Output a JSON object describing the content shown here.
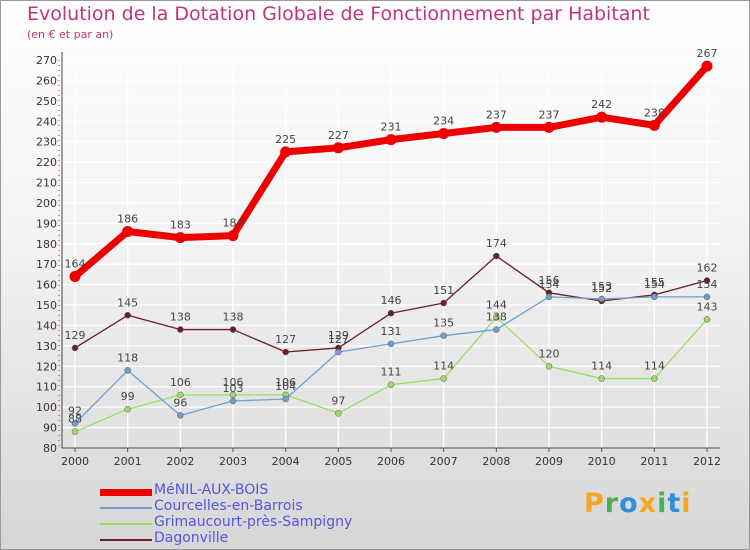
{
  "chart_data": {
    "type": "line",
    "title": "Evolution de la Dotation Globale de Fonctionnement par Habitant",
    "subtitle": "(en € et par an)",
    "xlabel": "",
    "ylabel": "",
    "x": [
      "2000",
      "2001",
      "2002",
      "2003",
      "2004",
      "2005",
      "2006",
      "2007",
      "2008",
      "2009",
      "2010",
      "2011",
      "2012"
    ],
    "ylim": [
      80,
      270
    ],
    "yticks": [
      80,
      90,
      100,
      110,
      120,
      130,
      140,
      150,
      160,
      170,
      180,
      190,
      200,
      210,
      220,
      230,
      240,
      250,
      260,
      270
    ],
    "grid": true,
    "legend_position": "bottom-left",
    "series": [
      {
        "name": "MéNIL-AUX-BOIS",
        "color": "#ee0000",
        "values": [
          164,
          186,
          183,
          184,
          225,
          227,
          231,
          234,
          237,
          237,
          242,
          238,
          267
        ]
      },
      {
        "name": "Courcelles-en-Barrois",
        "color": "#6e9fd0",
        "values": [
          92,
          118,
          96,
          103,
          104,
          127,
          131,
          135,
          138,
          154,
          153,
          154,
          154
        ]
      },
      {
        "name": "Grimaucourt-près-Sampigny",
        "color": "#99dd66",
        "values": [
          88,
          99,
          106,
          106,
          106,
          97,
          111,
          114,
          144,
          120,
          114,
          114,
          143
        ]
      },
      {
        "name": "Dagonville",
        "color": "#6b1f24",
        "values": [
          129,
          145,
          138,
          138,
          127,
          129,
          146,
          151,
          174,
          156,
          152,
          155,
          162
        ]
      }
    ]
  },
  "brand": {
    "name": "Proxiti",
    "letters": [
      "P",
      "r",
      "o",
      "x",
      "i",
      "t",
      "i"
    ],
    "colors": [
      "#f5a623",
      "#4caf50",
      "#2f8fd8",
      "#f5a623",
      "#4caf50",
      "#2f8fd8",
      "#f5a623"
    ]
  }
}
